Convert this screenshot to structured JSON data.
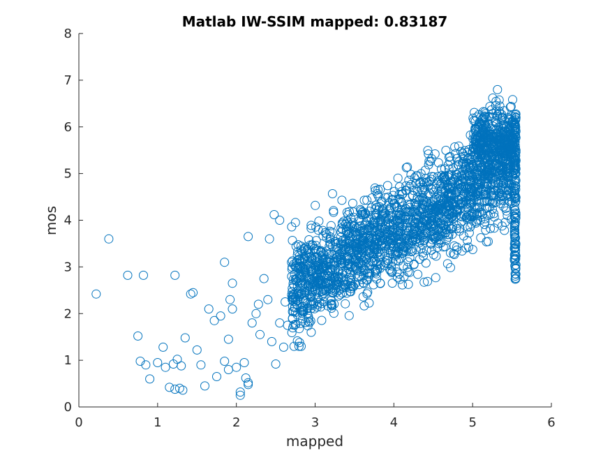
{
  "chart_data": {
    "type": "scatter",
    "title": "Matlab IW-SSIM mapped: 0.83187",
    "xlabel": "mapped",
    "ylabel": "mos",
    "xlim": [
      0,
      6
    ],
    "ylim": [
      0,
      8
    ],
    "xticks": [
      "0",
      "1",
      "2",
      "3",
      "4",
      "5",
      "6"
    ],
    "yticks": [
      "0",
      "1",
      "2",
      "3",
      "4",
      "5",
      "6",
      "7",
      "8"
    ],
    "grid": false,
    "marker": "circle",
    "marker_color": "#0072bd",
    "series": [
      {
        "x": [
          0.22,
          0.38,
          0.62,
          0.82,
          0.75,
          0.78,
          0.85,
          0.9,
          1.0,
          1.07,
          1.1,
          1.15,
          1.2,
          1.22,
          1.25,
          1.3,
          1.32,
          1.35,
          1.22,
          1.28,
          1.42,
          1.45,
          1.5,
          1.55,
          1.6,
          1.65,
          1.72,
          1.75,
          1.8,
          1.85,
          1.9,
          1.95,
          2.0,
          2.05,
          1.9,
          1.95,
          2.1,
          2.15,
          2.2,
          2.25,
          2.15,
          1.85,
          1.92,
          2.28,
          2.3,
          2.35,
          2.4,
          2.45,
          2.5,
          2.55,
          2.6,
          2.62,
          2.65,
          2.7,
          2.75,
          2.8,
          2.85,
          2.88,
          2.9,
          2.95,
          2.42,
          2.48,
          2.55,
          2.15,
          2.05,
          2.12
        ],
        "y": [
          2.42,
          3.6,
          2.82,
          2.82,
          1.52,
          0.98,
          0.9,
          0.6,
          0.95,
          1.28,
          0.85,
          0.42,
          0.92,
          0.38,
          1.02,
          0.88,
          0.36,
          1.48,
          2.82,
          0.4,
          2.42,
          2.45,
          1.22,
          0.9,
          0.45,
          2.1,
          1.85,
          0.65,
          1.95,
          0.98,
          0.8,
          2.1,
          0.85,
          0.25,
          1.45,
          2.65,
          0.95,
          0.48,
          1.8,
          2.0,
          3.65,
          3.1,
          2.3,
          2.2,
          1.55,
          2.75,
          2.3,
          1.4,
          0.92,
          1.8,
          1.28,
          2.25,
          1.75,
          3.1,
          3.95,
          2.4,
          2.1,
          2.85,
          2.0,
          1.6,
          3.6,
          4.12,
          4.0,
          0.52,
          0.32,
          0.62
        ]
      }
    ]
  }
}
